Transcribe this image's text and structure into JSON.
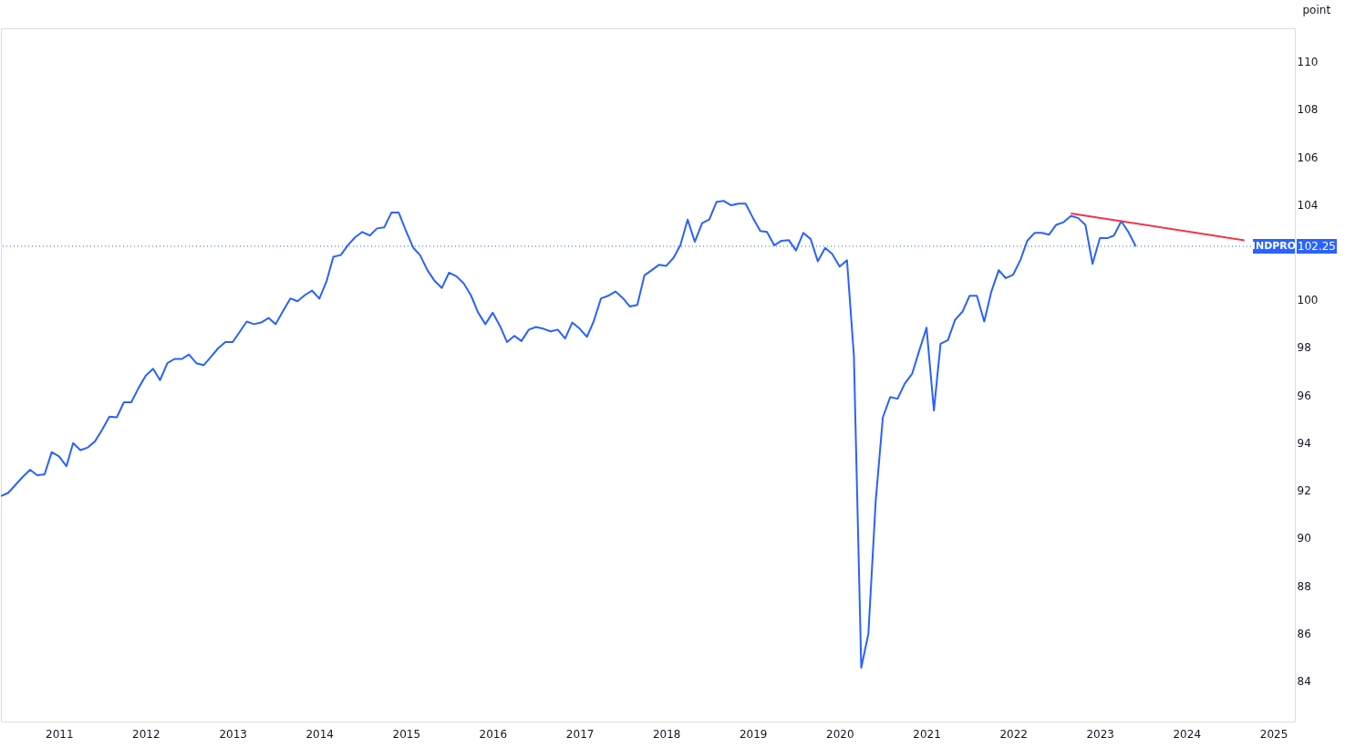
{
  "chart_data": {
    "type": "line",
    "ylabel": "point",
    "xlim": [
      "2010-05",
      "2025-04"
    ],
    "ylim": [
      82.3,
      111.4
    ],
    "xticks": [
      "2011",
      "2012",
      "2013",
      "2014",
      "2015",
      "2016",
      "2017",
      "2018",
      "2019",
      "2020",
      "2021",
      "2022",
      "2023",
      "2024",
      "2025"
    ],
    "yticks": [
      84,
      86,
      88,
      90,
      92,
      94,
      96,
      98,
      100,
      104,
      106,
      108,
      110
    ],
    "grid": false,
    "line_style": "solid",
    "annotations": [
      "102.25"
    ],
    "x": [
      "2010-05",
      "2010-06",
      "2010-08",
      "2010-09",
      "2010-10",
      "2010-11",
      "2010-12",
      "2011-01",
      "2011-02",
      "2011-03",
      "2011-04",
      "2011-05",
      "2011-06",
      "2011-07",
      "2011-08",
      "2011-09",
      "2011-10",
      "2011-11",
      "2011-12",
      "2012-01",
      "2012-02",
      "2012-03",
      "2012-04",
      "2012-05",
      "2012-06",
      "2012-07",
      "2012-08",
      "2012-09",
      "2012-10",
      "2012-11",
      "2012-12",
      "2013-01",
      "2013-02",
      "2013-03",
      "2013-04",
      "2013-05",
      "2013-06",
      "2013-07",
      "2013-08",
      "2013-09",
      "2013-10",
      "2013-11",
      "2013-12",
      "2014-01",
      "2014-02",
      "2014-03",
      "2014-04",
      "2014-05",
      "2014-06",
      "2014-07",
      "2014-08",
      "2014-09",
      "2014-10",
      "2014-11",
      "2014-12",
      "2015-01",
      "2015-02",
      "2015-03",
      "2015-04",
      "2015-05",
      "2015-06",
      "2015-07",
      "2015-08",
      "2015-09",
      "2015-10",
      "2015-11",
      "2015-12",
      "2016-01",
      "2016-02",
      "2016-03",
      "2016-04",
      "2016-05",
      "2016-06",
      "2016-07",
      "2016-08",
      "2016-09",
      "2016-10",
      "2016-11",
      "2016-12",
      "2017-01",
      "2017-02",
      "2017-03",
      "2017-04",
      "2017-05",
      "2017-06",
      "2017-07",
      "2017-08",
      "2017-09",
      "2017-10",
      "2017-11",
      "2017-12",
      "2018-01",
      "2018-02",
      "2018-03",
      "2018-04",
      "2018-05",
      "2018-06",
      "2018-07",
      "2018-08",
      "2018-09",
      "2018-10",
      "2018-11",
      "2018-12",
      "2019-01",
      "2019-02",
      "2019-03",
      "2019-04",
      "2019-05",
      "2019-06",
      "2019-07",
      "2019-08",
      "2019-09",
      "2019-10",
      "2019-11",
      "2019-12",
      "2020-01",
      "2020-02",
      "2020-03",
      "2020-04",
      "2020-05",
      "2020-06",
      "2020-07",
      "2020-08",
      "2020-09",
      "2020-10",
      "2020-11",
      "2020-12",
      "2021-01",
      "2021-02",
      "2021-03",
      "2021-04",
      "2021-05",
      "2021-06",
      "2021-07",
      "2021-08",
      "2021-09",
      "2021-10",
      "2021-11",
      "2021-12",
      "2022-01",
      "2022-02",
      "2022-03",
      "2022-04",
      "2022-05",
      "2022-06",
      "2022-07",
      "2022-08",
      "2022-09",
      "2022-10",
      "2022-11",
      "2022-12",
      "2023-01",
      "2023-02",
      "2023-03",
      "2023-04",
      "2023-05",
      "2023-06"
    ],
    "series": [
      {
        "color": "#2962ff",
        "values": [
          91.76,
          91.9,
          92.57,
          92.87,
          92.64,
          92.68,
          93.61,
          93.43,
          93.02,
          93.99,
          93.69,
          93.8,
          94.06,
          94.54,
          95.1,
          95.07,
          95.7,
          95.7,
          96.29,
          96.82,
          97.11,
          96.63,
          97.34,
          97.52,
          97.52,
          97.71,
          97.34,
          97.26,
          97.6,
          97.97,
          98.23,
          98.23,
          98.68,
          99.09,
          98.98,
          99.05,
          99.24,
          98.98,
          99.53,
          100.06,
          99.94,
          100.2,
          100.39,
          100.05,
          100.8,
          101.81,
          101.88,
          102.29,
          102.63,
          102.85,
          102.7,
          103.0,
          103.04,
          103.67,
          103.67,
          102.89,
          102.18,
          101.88,
          101.25,
          100.8,
          100.5,
          101.14,
          100.99,
          100.69,
          100.2,
          99.46,
          98.98,
          99.46,
          98.9,
          98.23,
          98.49,
          98.27,
          98.75,
          98.86,
          98.79,
          98.68,
          98.75,
          98.38,
          99.05,
          98.79,
          98.45,
          99.09,
          100.06,
          100.17,
          100.35,
          100.09,
          99.72,
          99.79,
          101.03,
          101.25,
          101.47,
          101.43,
          101.77,
          102.29,
          103.37,
          102.44,
          103.22,
          103.37,
          104.12,
          104.15,
          103.97,
          104.04,
          104.04,
          103.44,
          102.89,
          102.85,
          102.29,
          102.48,
          102.51,
          102.07,
          102.81,
          102.55,
          101.62,
          102.18,
          101.92,
          101.4,
          101.66,
          97.67,
          84.56,
          85.98,
          91.57,
          95.07,
          95.92,
          95.85,
          96.48,
          96.89,
          97.86,
          98.83,
          95.36,
          98.16,
          98.31,
          99.16,
          99.5,
          100.17,
          100.17,
          99.09,
          100.35,
          101.25,
          100.91,
          101.06,
          101.69,
          102.48,
          102.81,
          102.81,
          102.74,
          103.15,
          103.26,
          103.52,
          103.44,
          103.15,
          101.51,
          102.59,
          102.59,
          102.7,
          103.3,
          102.85,
          102.25
        ]
      },
      {
        "color": "#f23645",
        "x": [
          "2022-09",
          "2024-09"
        ],
        "values": [
          103.63,
          102.5
        ]
      }
    ],
    "ref_lines": [
      {
        "axis": "y",
        "value": 102.25,
        "label": "INDPRO",
        "color": "#2962ff",
        "line_style": "dotted"
      }
    ]
  }
}
